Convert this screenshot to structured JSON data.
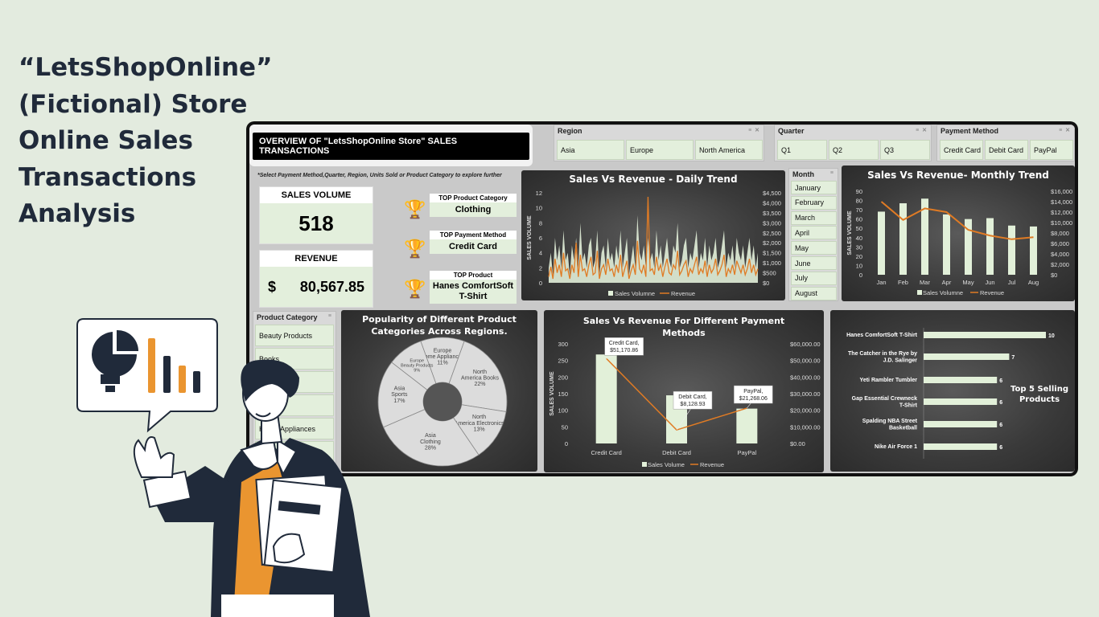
{
  "title_lines": [
    "“LetsShopOnline”",
    "(Fictional) Store",
    "Online Sales",
    "Transactions",
    "Analysis"
  ],
  "dashboard": {
    "overview_title": "OVERVIEW OF \"LetsShopOnline Store\" SALES TRANSACTIONS",
    "hint": "*Select Payment Method,Quarter, Region, Units Sold or Product Category to explore further",
    "sales_volume": {
      "label": "SALES VOLUME",
      "value": "518"
    },
    "revenue": {
      "label": "REVENUE",
      "currency": "$",
      "value": "80,567.85"
    },
    "top_category": {
      "label": "TOP Product Category",
      "value": "Clothing"
    },
    "top_payment": {
      "label": "TOP Payment Method",
      "value": "Credit Card"
    },
    "top_product": {
      "label": "TOP Product",
      "value": "Hanes ComfortSoft T-Shirt"
    }
  },
  "slicers": {
    "region": {
      "title": "Region",
      "items": [
        "Asia",
        "Europe",
        "North America"
      ]
    },
    "quarter": {
      "title": "Quarter",
      "items": [
        "Q1",
        "Q2",
        "Q3"
      ]
    },
    "payment": {
      "title": "Payment Method",
      "items": [
        "Credit Card",
        "Debit Card",
        "PayPal"
      ]
    },
    "month": {
      "title": "Month",
      "items": [
        "January",
        "February",
        "March",
        "April",
        "May",
        "June",
        "July",
        "August"
      ]
    },
    "category": {
      "title": "Product Category",
      "items": [
        "Beauty Products",
        "Books",
        "",
        "",
        "Home Appliances",
        ""
      ]
    }
  },
  "icons": {
    "trophy": "trophy-icon",
    "filter": "filter-icon",
    "clear": "clear-filter-icon"
  },
  "colors": {
    "bar": "#e2f0d9",
    "line": "#e07b24",
    "navy": "#202a3a",
    "panel": "#3c3c3c",
    "background": "#e3ebdf"
  },
  "chart_data": [
    {
      "type": "line",
      "title": "Sales Vs Revenue - Daily Trend",
      "ylabel": "SALES VOLUME",
      "ylim": [
        0,
        12
      ],
      "yticks": [
        "12",
        "10",
        "8",
        "6",
        "4",
        "2",
        "0"
      ],
      "y2ticks": [
        "$4,500",
        "$4,000",
        "$3,500",
        "$3,000",
        "$2,500",
        "$2,000",
        "$1,500",
        "$1,000",
        "$500",
        "$0"
      ],
      "y2lim": [
        0,
        4500
      ],
      "legend": [
        "Sales Volumne",
        "Revenue"
      ],
      "series": [
        {
          "name": "Sales Volumne",
          "type": "area",
          "values": [
            2,
            4,
            1,
            6,
            3,
            5,
            2,
            7,
            3,
            4,
            1,
            5,
            3,
            6,
            2,
            8,
            3,
            4,
            2,
            5,
            6,
            2,
            3,
            7,
            1,
            4,
            5,
            2,
            6,
            3,
            4,
            2,
            5,
            3,
            7,
            2,
            4,
            6,
            1,
            3,
            5,
            2,
            9,
            4,
            3,
            5,
            2,
            6,
            3,
            4,
            2,
            7,
            3,
            5,
            2,
            4,
            6,
            3,
            2,
            5,
            4,
            8,
            2,
            3,
            5,
            6,
            2,
            4,
            3,
            5,
            7,
            2,
            4,
            3,
            6,
            2,
            5,
            3,
            4,
            6,
            2,
            3,
            5,
            7,
            2,
            4,
            3,
            5,
            2,
            6,
            4,
            3,
            5,
            2,
            4,
            6,
            3,
            5,
            2,
            4
          ]
        },
        {
          "name": "Revenue",
          "values": [
            300,
            800,
            200,
            1200,
            500,
            900,
            300,
            1500,
            600,
            700,
            200,
            900,
            500,
            2000,
            300,
            1400,
            600,
            700,
            300,
            900,
            1300,
            400,
            500,
            1600,
            200,
            700,
            900,
            400,
            1200,
            600,
            700,
            300,
            900,
            500,
            1400,
            300,
            700,
            1100,
            200,
            600,
            900,
            400,
            2100,
            700,
            500,
            900,
            300,
            4300,
            600,
            700,
            400,
            1300,
            600,
            900,
            300,
            800,
            1200,
            500,
            400,
            900,
            700,
            1600,
            400,
            600,
            900,
            1100,
            300,
            700,
            500,
            900,
            1300,
            400,
            700,
            500,
            1100,
            300,
            900,
            500,
            700,
            1200,
            400,
            600,
            900,
            1400,
            300,
            700,
            500,
            900,
            400,
            1100,
            800,
            500,
            900,
            400,
            700,
            1200,
            500,
            900,
            400,
            700
          ]
        }
      ]
    },
    {
      "type": "bar",
      "title": "Sales Vs Revenue- Monthly Trend",
      "ylabel": "SALES VOLUME",
      "categories": [
        "Jan",
        "Feb",
        "Mar",
        "Apr",
        "May",
        "Jun",
        "Jul",
        "Aug"
      ],
      "ylim": [
        0,
        90
      ],
      "yticks": [
        "90",
        "80",
        "70",
        "60",
        "50",
        "40",
        "30",
        "20",
        "10",
        "0"
      ],
      "y2lim": [
        0,
        16000
      ],
      "y2ticks": [
        "$16,000",
        "$14,000",
        "$12,000",
        "$10,000",
        "$8,000",
        "$6,000",
        "$4,000",
        "$2,000",
        "$0"
      ],
      "legend": [
        "Sales Volumne",
        "Revenue"
      ],
      "series": [
        {
          "name": "Sales Volumne",
          "values": [
            68,
            77,
            82,
            65,
            60,
            61,
            53,
            52
          ]
        },
        {
          "name": "Revenue",
          "values": [
            14000,
            10500,
            12700,
            12000,
            8600,
            7500,
            6800,
            7200
          ]
        }
      ]
    },
    {
      "type": "pie",
      "title": "Popularity of Different Product Categories Across Regions.",
      "slices": [
        {
          "label": "Europe Home Appliances",
          "pct": "11%",
          "value": 11
        },
        {
          "label": "North America Books",
          "pct": "22%",
          "value": 22
        },
        {
          "label": "North America Electronics",
          "pct": "13%",
          "value": 13
        },
        {
          "label": "Asia Clothing",
          "pct": "28%",
          "value": 28
        },
        {
          "label": "Asia Sports",
          "pct": "17%",
          "value": 17
        },
        {
          "label": "Europe Beauty Products",
          "pct": "9%",
          "value": 9
        }
      ]
    },
    {
      "type": "bar",
      "title": "Sales Vs Revenue For Different Payment Methods",
      "ylabel": "SALES VOLUME",
      "categories": [
        "Credit Card",
        "Debit Card",
        "PayPal"
      ],
      "ylim": [
        0,
        300
      ],
      "yticks": [
        "300",
        "250",
        "200",
        "150",
        "100",
        "50",
        "0"
      ],
      "y2lim": [
        0,
        60000
      ],
      "y2ticks": [
        "$60,000.00",
        "$50,000.00",
        "$40,000.00",
        "$30,000.00",
        "$20,000.00",
        "$10,000.00",
        "$0.00"
      ],
      "legend": [
        "Sales Volume",
        "Revenue"
      ],
      "series": [
        {
          "name": "Sales Volume",
          "values": [
            268,
            145,
            105
          ]
        },
        {
          "name": "Revenue",
          "values": [
            51170.86,
            8128.93,
            21268.06
          ],
          "labels": [
            "Credit Card,\n$51,170.86",
            "Debit Card,\n$8,128.93",
            "PayPal,\n$21,268.06"
          ]
        }
      ]
    },
    {
      "type": "bar",
      "orientation": "horizontal",
      "title": "Top 5 Selling Products",
      "categories": [
        "Hanes ComfortSoft T-Shirt",
        "The Catcher in the Rye by J.D. Salinger",
        "Yeti Rambler Tumbler",
        "Gap Essential Crewneck T-Shirt",
        "Spalding NBA Street Basketball",
        "Nike Air Force 1"
      ],
      "values": [
        10,
        7,
        6,
        6,
        6,
        6
      ]
    }
  ]
}
